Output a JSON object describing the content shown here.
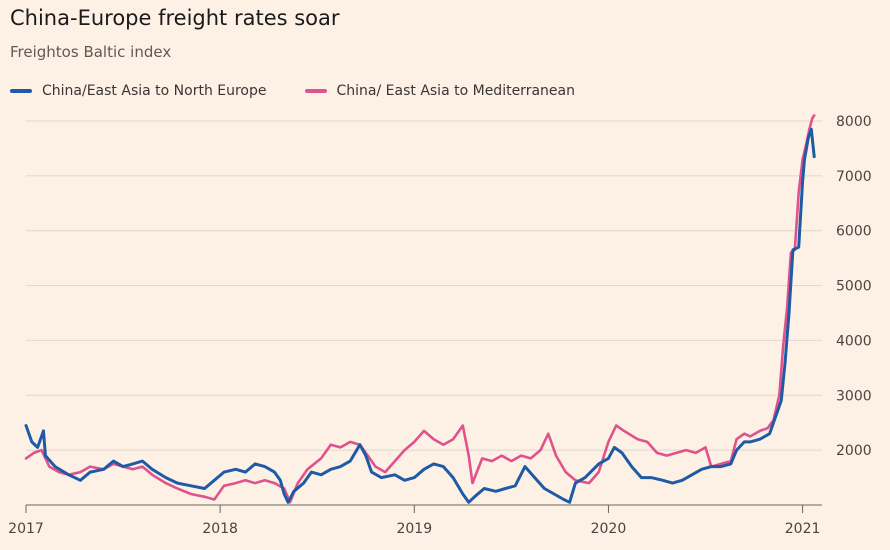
{
  "chart_data": {
    "type": "line",
    "title": "China-Europe freight rates soar",
    "subtitle": "Freightos Baltic index",
    "xlabel": "",
    "ylabel": "",
    "xlim": [
      2017.0,
      2021.1
    ],
    "ylim": [
      1000,
      8200
    ],
    "x_ticks": [
      "2017",
      "2018",
      "2019",
      "2020",
      "2021"
    ],
    "y_ticks": [
      2000,
      3000,
      4000,
      5000,
      6000,
      7000,
      8000
    ],
    "legend_position": "top-left",
    "series": [
      {
        "name": "China/East Asia to North Europe",
        "color": "#1f5aa6",
        "points": [
          [
            2017.0,
            2450
          ],
          [
            2017.03,
            2150
          ],
          [
            2017.06,
            2050
          ],
          [
            2017.09,
            2350
          ],
          [
            2017.1,
            1900
          ],
          [
            2017.15,
            1700
          ],
          [
            2017.22,
            1550
          ],
          [
            2017.28,
            1450
          ],
          [
            2017.33,
            1600
          ],
          [
            2017.4,
            1650
          ],
          [
            2017.45,
            1800
          ],
          [
            2017.5,
            1700
          ],
          [
            2017.55,
            1750
          ],
          [
            2017.6,
            1800
          ],
          [
            2017.65,
            1650
          ],
          [
            2017.72,
            1500
          ],
          [
            2017.78,
            1400
          ],
          [
            2017.85,
            1350
          ],
          [
            2017.92,
            1300
          ],
          [
            2017.97,
            1450
          ],
          [
            2018.02,
            1600
          ],
          [
            2018.08,
            1650
          ],
          [
            2018.13,
            1600
          ],
          [
            2018.18,
            1750
          ],
          [
            2018.23,
            1700
          ],
          [
            2018.28,
            1600
          ],
          [
            2018.31,
            1450
          ],
          [
            2018.33,
            1200
          ],
          [
            2018.35,
            1050
          ],
          [
            2018.38,
            1250
          ],
          [
            2018.43,
            1400
          ],
          [
            2018.47,
            1600
          ],
          [
            2018.52,
            1550
          ],
          [
            2018.57,
            1650
          ],
          [
            2018.62,
            1700
          ],
          [
            2018.67,
            1800
          ],
          [
            2018.72,
            2100
          ],
          [
            2018.75,
            1900
          ],
          [
            2018.78,
            1600
          ],
          [
            2018.83,
            1500
          ],
          [
            2018.9,
            1550
          ],
          [
            2018.95,
            1450
          ],
          [
            2019.0,
            1500
          ],
          [
            2019.05,
            1650
          ],
          [
            2019.1,
            1750
          ],
          [
            2019.15,
            1700
          ],
          [
            2019.2,
            1500
          ],
          [
            2019.25,
            1200
          ],
          [
            2019.28,
            1050
          ],
          [
            2019.31,
            1150
          ],
          [
            2019.36,
            1300
          ],
          [
            2019.42,
            1250
          ],
          [
            2019.47,
            1300
          ],
          [
            2019.52,
            1350
          ],
          [
            2019.57,
            1700
          ],
          [
            2019.62,
            1500
          ],
          [
            2019.67,
            1300
          ],
          [
            2019.72,
            1200
          ],
          [
            2019.77,
            1100
          ],
          [
            2019.8,
            1050
          ],
          [
            2019.83,
            1400
          ],
          [
            2019.88,
            1500
          ],
          [
            2019.95,
            1750
          ],
          [
            2020.0,
            1850
          ],
          [
            2020.03,
            2050
          ],
          [
            2020.07,
            1950
          ],
          [
            2020.12,
            1700
          ],
          [
            2020.17,
            1500
          ],
          [
            2020.22,
            1500
          ],
          [
            2020.28,
            1450
          ],
          [
            2020.33,
            1400
          ],
          [
            2020.38,
            1450
          ],
          [
            2020.43,
            1550
          ],
          [
            2020.48,
            1650
          ],
          [
            2020.53,
            1700
          ],
          [
            2020.58,
            1700
          ],
          [
            2020.63,
            1750
          ],
          [
            2020.66,
            2000
          ],
          [
            2020.7,
            2150
          ],
          [
            2020.73,
            2150
          ],
          [
            2020.78,
            2200
          ],
          [
            2020.83,
            2300
          ],
          [
            2020.86,
            2600
          ],
          [
            2020.89,
            2900
          ],
          [
            2020.91,
            3600
          ],
          [
            2020.93,
            4500
          ],
          [
            2020.95,
            5650
          ],
          [
            2020.98,
            5700
          ],
          [
            2021.0,
            6900
          ],
          [
            2021.01,
            7300
          ],
          [
            2021.03,
            7700
          ],
          [
            2021.045,
            7850
          ],
          [
            2021.06,
            7350
          ]
        ]
      },
      {
        "name": "China/ East Asia to Mediterranean",
        "color": "#e0528b",
        "points": [
          [
            2017.0,
            1850
          ],
          [
            2017.04,
            1950
          ],
          [
            2017.08,
            2000
          ],
          [
            2017.12,
            1700
          ],
          [
            2017.17,
            1600
          ],
          [
            2017.22,
            1550
          ],
          [
            2017.28,
            1600
          ],
          [
            2017.33,
            1700
          ],
          [
            2017.4,
            1650
          ],
          [
            2017.45,
            1750
          ],
          [
            2017.5,
            1700
          ],
          [
            2017.55,
            1650
          ],
          [
            2017.6,
            1700
          ],
          [
            2017.65,
            1550
          ],
          [
            2017.72,
            1400
          ],
          [
            2017.78,
            1300
          ],
          [
            2017.85,
            1200
          ],
          [
            2017.92,
            1150
          ],
          [
            2017.97,
            1100
          ],
          [
            2018.02,
            1350
          ],
          [
            2018.08,
            1400
          ],
          [
            2018.13,
            1450
          ],
          [
            2018.18,
            1400
          ],
          [
            2018.23,
            1450
          ],
          [
            2018.28,
            1400
          ],
          [
            2018.33,
            1300
          ],
          [
            2018.36,
            1050
          ],
          [
            2018.4,
            1400
          ],
          [
            2018.45,
            1650
          ],
          [
            2018.52,
            1850
          ],
          [
            2018.57,
            2100
          ],
          [
            2018.62,
            2050
          ],
          [
            2018.67,
            2150
          ],
          [
            2018.72,
            2100
          ],
          [
            2018.75,
            1950
          ],
          [
            2018.8,
            1700
          ],
          [
            2018.85,
            1600
          ],
          [
            2018.9,
            1800
          ],
          [
            2018.95,
            2000
          ],
          [
            2019.0,
            2150
          ],
          [
            2019.05,
            2350
          ],
          [
            2019.1,
            2200
          ],
          [
            2019.15,
            2100
          ],
          [
            2019.2,
            2200
          ],
          [
            2019.25,
            2450
          ],
          [
            2019.28,
            1900
          ],
          [
            2019.3,
            1400
          ],
          [
            2019.35,
            1850
          ],
          [
            2019.4,
            1800
          ],
          [
            2019.45,
            1900
          ],
          [
            2019.5,
            1800
          ],
          [
            2019.55,
            1900
          ],
          [
            2019.6,
            1850
          ],
          [
            2019.65,
            2000
          ],
          [
            2019.69,
            2300
          ],
          [
            2019.73,
            1900
          ],
          [
            2019.78,
            1600
          ],
          [
            2019.83,
            1450
          ],
          [
            2019.9,
            1400
          ],
          [
            2019.95,
            1600
          ],
          [
            2020.0,
            2150
          ],
          [
            2020.04,
            2450
          ],
          [
            2020.08,
            2350
          ],
          [
            2020.15,
            2200
          ],
          [
            2020.2,
            2150
          ],
          [
            2020.25,
            1950
          ],
          [
            2020.3,
            1900
          ],
          [
            2020.35,
            1950
          ],
          [
            2020.4,
            2000
          ],
          [
            2020.45,
            1950
          ],
          [
            2020.5,
            2050
          ],
          [
            2020.53,
            1700
          ],
          [
            2020.58,
            1750
          ],
          [
            2020.63,
            1800
          ],
          [
            2020.66,
            2200
          ],
          [
            2020.7,
            2300
          ],
          [
            2020.73,
            2250
          ],
          [
            2020.78,
            2350
          ],
          [
            2020.82,
            2400
          ],
          [
            2020.85,
            2550
          ],
          [
            2020.88,
            3000
          ],
          [
            2020.9,
            3900
          ],
          [
            2020.92,
            4600
          ],
          [
            2020.94,
            5600
          ],
          [
            2020.96,
            5650
          ],
          [
            2020.98,
            6700
          ],
          [
            2021.0,
            7300
          ],
          [
            2021.02,
            7600
          ],
          [
            2021.035,
            7850
          ],
          [
            2021.05,
            8050
          ],
          [
            2021.06,
            8100
          ]
        ]
      }
    ]
  }
}
